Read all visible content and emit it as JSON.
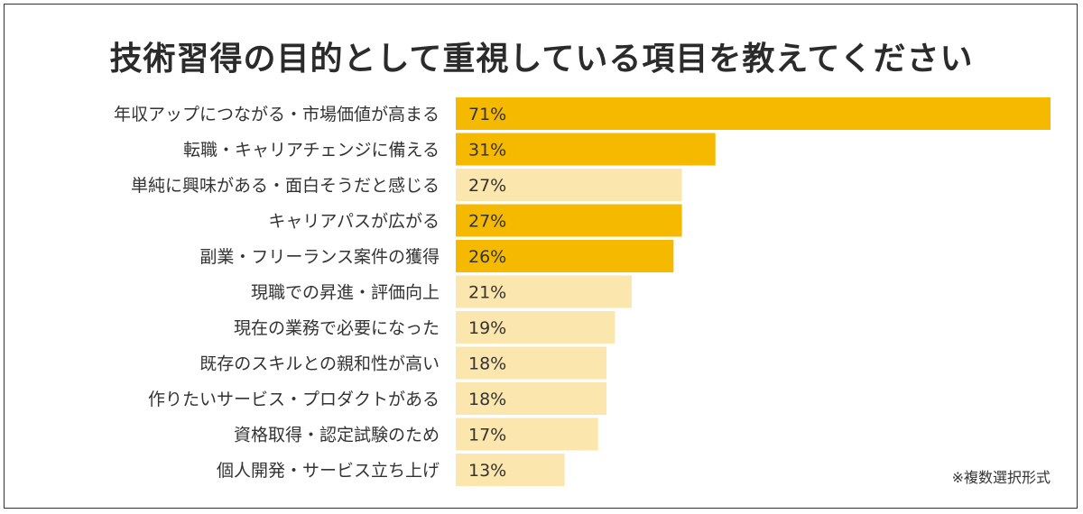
{
  "chart_data": {
    "type": "bar",
    "orientation": "horizontal",
    "title": "技術習得の目的として重視している項目を教えてください",
    "categories": [
      "年収アップにつながる・市場価値が高まる",
      "転職・キャリアチェンジに備える",
      "単純に興味がある・面白そうだと感じる",
      "キャリアパスが広がる",
      "副業・フリーランス案件の獲得",
      "現職での昇進・評価向上",
      "現在の業務で必要になった",
      "既存のスキルとの親和性が高い",
      "作りたいサービス・プロダクトがある",
      "資格取得・認定試験のため",
      "個人開発・サービス立ち上げ"
    ],
    "values": [
      71,
      31,
      27,
      27,
      26,
      21,
      19,
      18,
      18,
      17,
      13
    ],
    "value_labels": [
      "71%",
      "31%",
      "27%",
      "27%",
      "26%",
      "21%",
      "19%",
      "18%",
      "18%",
      "17%",
      "13%"
    ],
    "highlighted": [
      true,
      true,
      false,
      true,
      true,
      false,
      false,
      false,
      false,
      false,
      false
    ],
    "xlim": [
      0,
      71
    ],
    "colors": {
      "highlight": "#F5BA00",
      "normal": "#FBE6AE",
      "text": "#333333"
    },
    "note": "※複数選択形式"
  }
}
